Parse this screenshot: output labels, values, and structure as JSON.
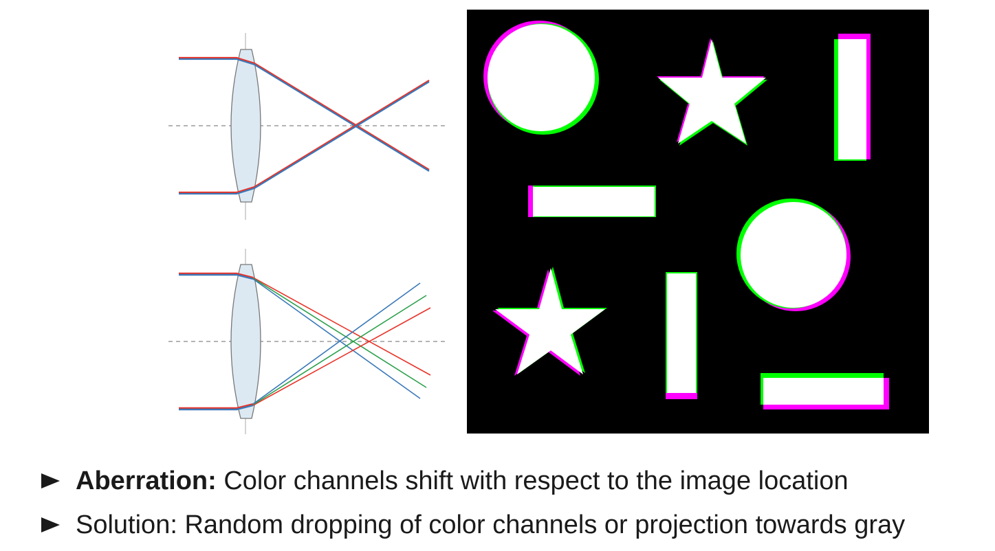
{
  "bullets": [
    {
      "bold": "Aberration:",
      "text": " Color channels shift with respect to the image location"
    },
    {
      "bold": "",
      "text": "Solution: Random dropping of color channels or projection towards gray"
    }
  ],
  "colors": {
    "red": "#e8342a",
    "green": "#2aa04a",
    "blue": "#3a78b8",
    "magenta": "#ff00ff",
    "lime": "#00ff00",
    "lens_fill": "#dce9f3",
    "lens_stroke": "#777777",
    "axis": "#888888"
  }
}
